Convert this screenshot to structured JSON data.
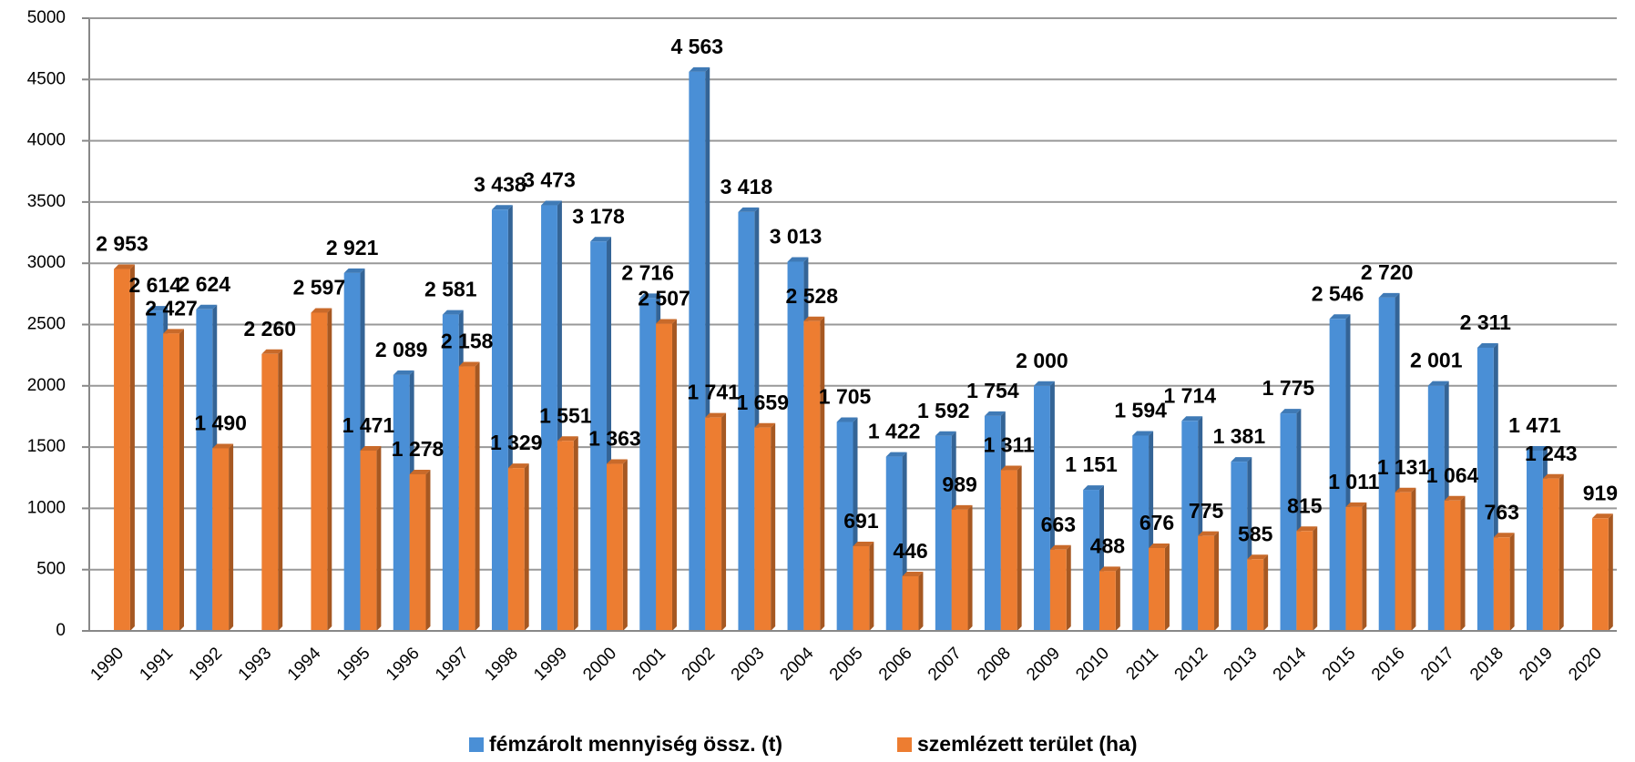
{
  "chart_data": {
    "type": "bar",
    "categories": [
      "1990",
      "1991",
      "1992",
      "1993",
      "1994",
      "1995",
      "1996",
      "1997",
      "1998",
      "1999",
      "2000",
      "2001",
      "2002",
      "2003",
      "2004",
      "2005",
      "2006",
      "2007",
      "2008",
      "2009",
      "2010",
      "2011",
      "2012",
      "2013",
      "2014",
      "2015",
      "2016",
      "2017",
      "2018",
      "2019",
      "2020"
    ],
    "series": [
      {
        "name": "fémzárolt mennyiség össz. (t)",
        "color": "#4a8fd6",
        "values": [
          null,
          2614,
          2624,
          null,
          null,
          2921,
          2089,
          2581,
          3438,
          3473,
          3178,
          2716,
          4563,
          3418,
          3013,
          1705,
          1422,
          1592,
          1754,
          2000,
          1151,
          1594,
          1714,
          1381,
          1775,
          2546,
          2720,
          2001,
          2311,
          1471,
          null
        ],
        "value_labels": [
          null,
          "2 614",
          "2 624",
          null,
          null,
          "2 921",
          "2 089",
          "2 581",
          "3 438",
          "3 473",
          "3 178",
          "2 716",
          "4 563",
          "3 418",
          "3 013",
          "1 705",
          "1 422",
          "1 592",
          "1 754",
          "2 000",
          "1 151",
          "1 594",
          "1 714",
          "1 381",
          "1 775",
          "2 546",
          "2 720",
          "2 001",
          "2 311",
          "1 471",
          null
        ]
      },
      {
        "name": "szemlézett terület (ha)",
        "color": "#ed7d31",
        "values": [
          2953,
          2427,
          1490,
          2260,
          2597,
          1471,
          1278,
          2158,
          1329,
          1551,
          1363,
          2507,
          1741,
          1659,
          2528,
          691,
          446,
          989,
          1311,
          663,
          488,
          676,
          775,
          585,
          815,
          1011,
          1131,
          1064,
          763,
          1243,
          919
        ],
        "value_labels": [
          "2 953",
          "2 427",
          "1 490",
          "2 260",
          "2 597",
          "1 471",
          "1 278",
          "2 158",
          "1 329",
          "1 551",
          "1 363",
          "2 507",
          "1 741",
          "1 659",
          "2 528",
          "691",
          "446",
          "989",
          "1 311",
          "663",
          "488",
          "676",
          "775",
          "585",
          "815",
          "1 011",
          "1 131",
          "1 064",
          "763",
          "1 243",
          "919"
        ]
      }
    ],
    "ylim": [
      0,
      5000
    ],
    "yticks": [
      0,
      500,
      1000,
      1500,
      2000,
      2500,
      3000,
      3500,
      4000,
      4500,
      5000
    ],
    "grid": true,
    "legend": "bottom"
  }
}
